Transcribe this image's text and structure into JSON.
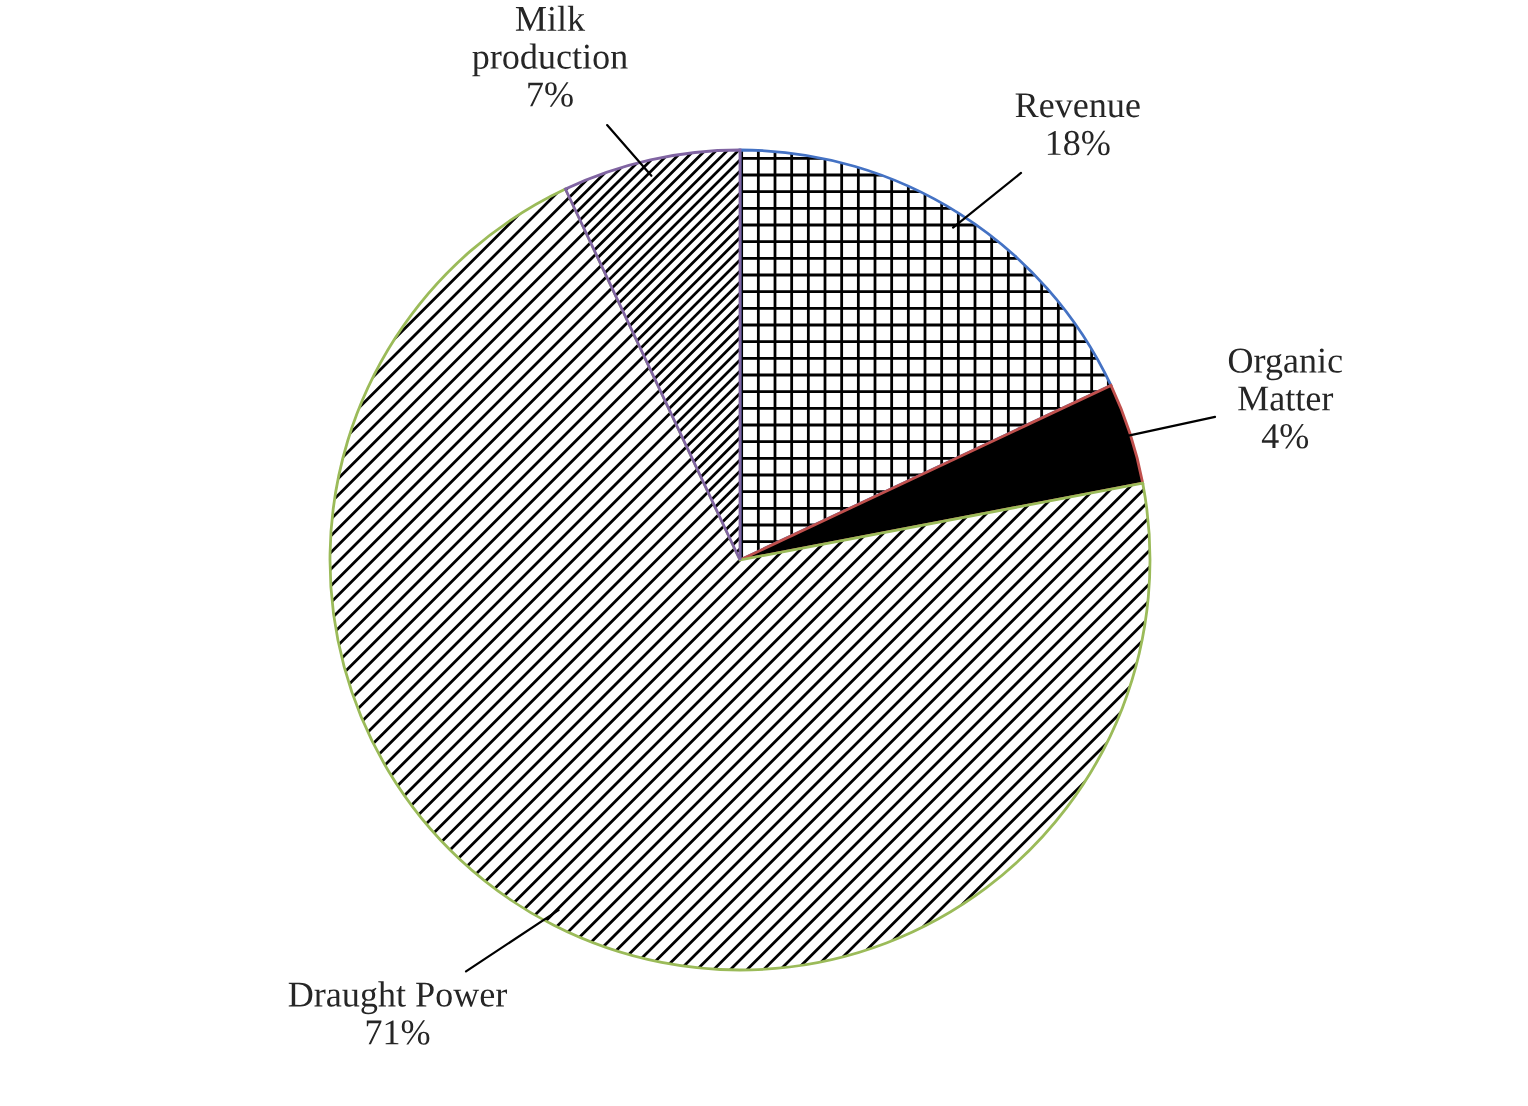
{
  "chart_data": {
    "type": "pie",
    "categories": [
      "Revenue",
      "Organic Matter",
      "Draught Power",
      "Milk production"
    ],
    "values": [
      18,
      4,
      71,
      7
    ],
    "colors": [
      "#000000",
      "#000000",
      "#000000",
      "#000000"
    ],
    "value_labels": [
      "18%",
      "4%",
      "71%",
      "7%"
    ]
  }
}
